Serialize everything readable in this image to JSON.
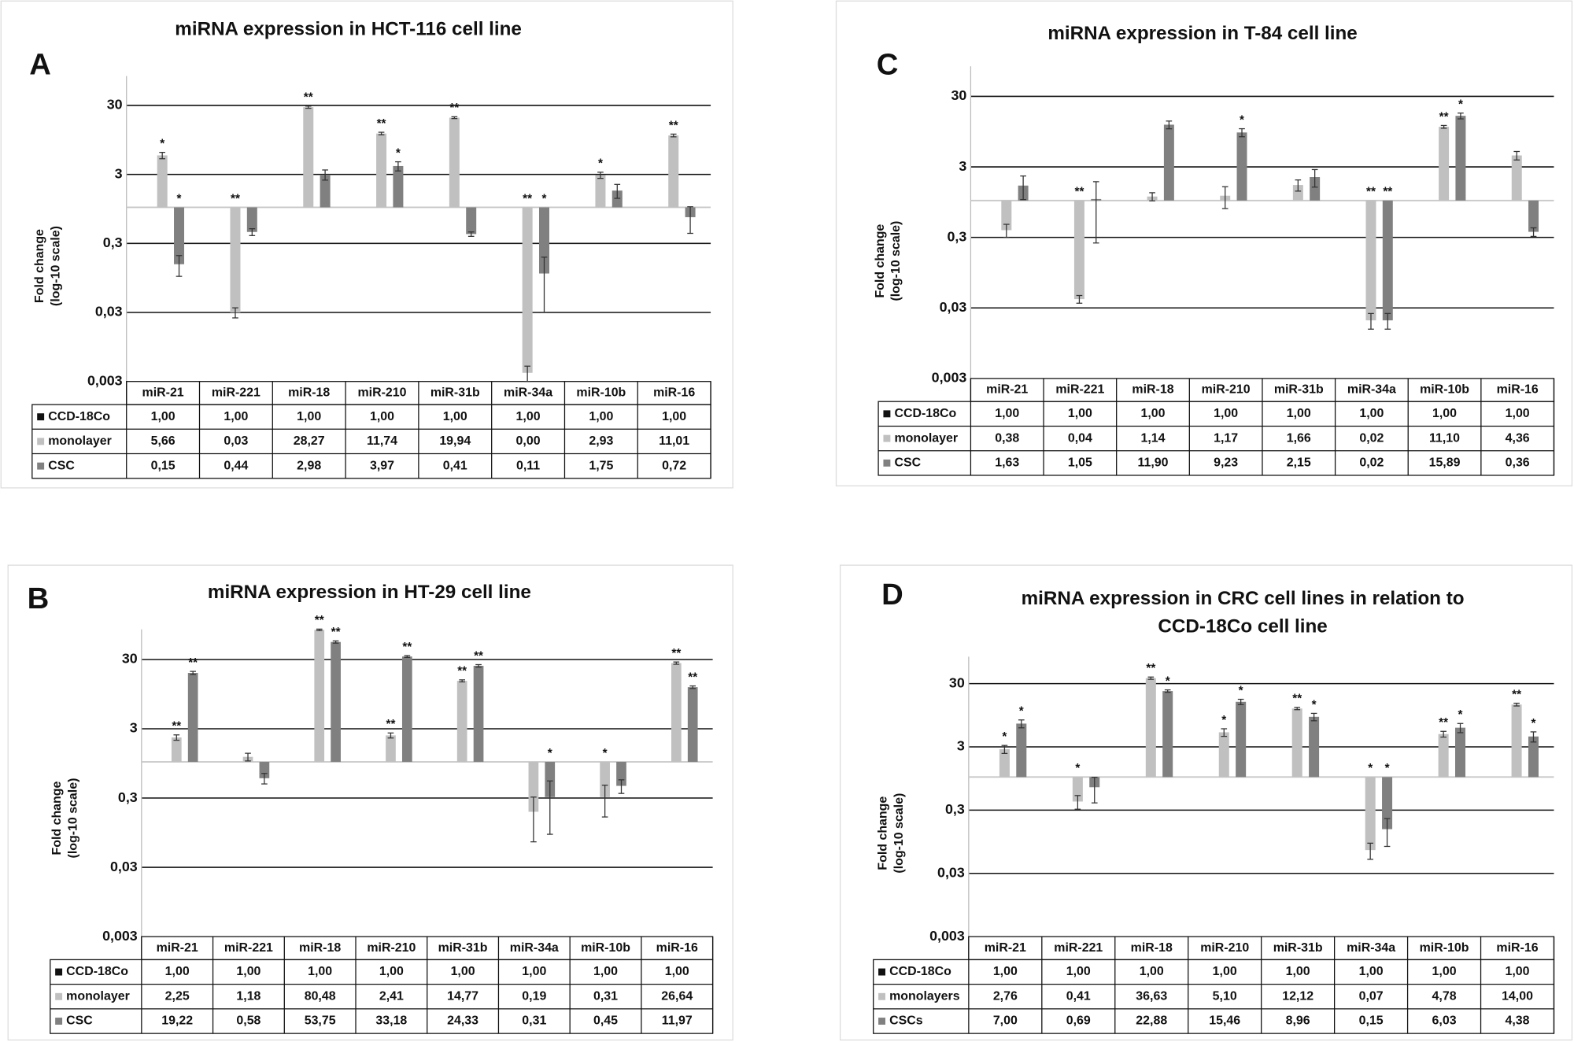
{
  "chart_data": [
    {
      "type": "bar",
      "panel": "A",
      "title": "miRNA expression in HCT-116 cell line",
      "ylabel": [
        "Fold change",
        "(log-10 scale)"
      ],
      "log_scale": true,
      "grid": true,
      "ylim": [
        0.003,
        80
      ],
      "yticks": [
        {
          "value": 0.003,
          "label": "0,003"
        },
        {
          "value": 0.03,
          "label": "0,03"
        },
        {
          "value": 0.3,
          "label": "0,3"
        },
        3,
        30
      ],
      "categories": [
        "miR-21",
        "miR-221",
        "miR-18",
        "miR-210",
        "miR-31b",
        "miR-34a",
        "miR-10b",
        "miR-16"
      ],
      "series": [
        {
          "name": "CCD-18Co",
          "color": "#111111",
          "values": [
            1,
            1,
            1,
            1,
            1,
            1,
            1,
            1
          ],
          "value_labels": [
            "1,00",
            "1,00",
            "1,00",
            "1,00",
            "1,00",
            "1,00",
            "1,00",
            "1,00"
          ]
        },
        {
          "name": "monolayer",
          "color": "#c0c0c0",
          "values": [
            5.66,
            0.03,
            28.27,
            11.74,
            19.94,
            0.004,
            2.93,
            11.01
          ],
          "value_labels": [
            "5,66",
            "0,03",
            "28,27",
            "11,74",
            "19,94",
            "0,00",
            "2,93",
            "11,01"
          ],
          "errors": [
            0.6,
            0.005,
            1,
            0.5,
            0.6,
            0.001,
            0.3,
            0.5
          ],
          "annotations": [
            "*",
            "**",
            "**",
            "**",
            "**",
            "**",
            "*",
            "**"
          ]
        },
        {
          "name": "CSC",
          "color": "#808080",
          "values": [
            0.15,
            0.44,
            2.98,
            3.97,
            0.41,
            0.11,
            1.75,
            0.72
          ],
          "value_labels": [
            "0,15",
            "0,44",
            "2,98",
            "3,97",
            "0,41",
            "0,11",
            "1,75",
            "0,72"
          ],
          "errors": [
            0.05,
            0.05,
            0.5,
            0.6,
            0.03,
            0.08,
            0.4,
            0.3
          ],
          "annotations": [
            "*",
            null,
            null,
            "*",
            null,
            "*",
            null,
            null
          ]
        }
      ]
    },
    {
      "type": "bar",
      "panel": "B",
      "title": "miRNA expression in HT-29 cell line",
      "ylabel": [
        "Fold change",
        "(log-10 scale)"
      ],
      "log_scale": true,
      "grid": true,
      "ylim": [
        0.003,
        82
      ],
      "yticks": [
        {
          "value": 0.003,
          "label": "0,003"
        },
        {
          "value": 0.03,
          "label": "0,03"
        },
        {
          "value": 0.3,
          "label": "0,3"
        },
        3,
        30
      ],
      "categories": [
        "miR-21",
        "miR-221",
        "miR-18",
        "miR-210",
        "miR-31b",
        "miR-34a",
        "miR-10b",
        "miR-16"
      ],
      "series": [
        {
          "name": "CCD-18Co",
          "color": "#111111",
          "values": [
            1,
            1,
            1,
            1,
            1,
            1,
            1,
            1
          ],
          "value_labels": [
            "1,00",
            "1,00",
            "1,00",
            "1,00",
            "1,00",
            "1,00",
            "1,00",
            "1,00"
          ]
        },
        {
          "name": "monolayer",
          "color": "#c0c0c0",
          "values": [
            2.25,
            1.18,
            80.48,
            2.41,
            14.77,
            0.19,
            0.31,
            26.64
          ],
          "value_labels": [
            "2,25",
            "1,18",
            "80,48",
            "2,41",
            "14,77",
            "0,19",
            "0,31",
            "26,64"
          ],
          "errors": [
            0.2,
            0.15,
            2,
            0.2,
            0.5,
            0.12,
            0.15,
            1
          ],
          "annotations": [
            "**",
            null,
            "**",
            "**",
            "**",
            null,
            "*",
            "**"
          ]
        },
        {
          "name": "CSC",
          "color": "#808080",
          "values": [
            19.22,
            0.58,
            53.75,
            33.18,
            24.33,
            0.31,
            0.45,
            11.97
          ],
          "value_labels": [
            "19,22",
            "0,58",
            "53,75",
            "33,18",
            "24,33",
            "0,31",
            "0,45",
            "11,97"
          ],
          "errors": [
            1,
            0.1,
            2,
            1,
            1,
            0.22,
            0.1,
            0.5
          ],
          "annotations": [
            "**",
            null,
            "**",
            "**",
            "**",
            "*",
            null,
            "**"
          ]
        }
      ]
    },
    {
      "type": "bar",
      "panel": "C",
      "title": "miRNA expression in T-84 cell line",
      "ylabel": [
        "Fold change",
        "(log-10 scale)"
      ],
      "log_scale": true,
      "grid": true,
      "ylim": [
        0.003,
        80
      ],
      "yticks": [
        {
          "value": 0.003,
          "label": "0,003"
        },
        {
          "value": 0.03,
          "label": "0,03"
        },
        {
          "value": 0.3,
          "label": "0,3"
        },
        3,
        30
      ],
      "categories": [
        "miR-21",
        "miR-221",
        "miR-18",
        "miR-210",
        "miR-31b",
        "miR-34a",
        "miR-10b",
        "miR-16"
      ],
      "series": [
        {
          "name": "CCD-18Co",
          "color": "#111111",
          "values": [
            1,
            1,
            1,
            1,
            1,
            1,
            1,
            1
          ],
          "value_labels": [
            "1,00",
            "1,00",
            "1,00",
            "1,00",
            "1,00",
            "1,00",
            "1,00",
            "1,00"
          ]
        },
        {
          "name": "monolayer",
          "color": "#c0c0c0",
          "values": [
            0.38,
            0.04,
            1.14,
            1.17,
            1.66,
            0.02,
            11.1,
            4.36
          ],
          "value_labels": [
            "0,38",
            "0,04",
            "1,14",
            "1,17",
            "1,66",
            "0,02",
            "11,10",
            "4,36"
          ],
          "errors": [
            0.08,
            0.005,
            0.15,
            0.4,
            0.3,
            0.005,
            0.5,
            0.6
          ],
          "annotations": [
            null,
            "**",
            null,
            null,
            null,
            "**",
            "**",
            null
          ]
        },
        {
          "name": "CSC",
          "color": "#808080",
          "values": [
            1.63,
            1.05,
            11.9,
            9.23,
            2.15,
            0.02,
            15.89,
            0.36
          ],
          "value_labels": [
            "1,63",
            "1,05",
            "11,90",
            "9,23",
            "2,15",
            "0,02",
            "15,89",
            "0,36"
          ],
          "errors": [
            0.6,
            0.8,
            1.5,
            1.2,
            0.6,
            0.005,
            1.5,
            0.05
          ],
          "annotations": [
            null,
            null,
            null,
            "*",
            null,
            "**",
            "*",
            null
          ]
        }
      ]
    },
    {
      "type": "bar",
      "panel": "D",
      "title": [
        "miRNA expression in CRC cell lines in relation to",
        "CCD-18Co cell line"
      ],
      "ylabel": [
        "Fold change",
        "(log-10 scale)"
      ],
      "log_scale": true,
      "grid": true,
      "ylim": [
        0.003,
        80
      ],
      "yticks": [
        {
          "value": 0.003,
          "label": "0,003"
        },
        {
          "value": 0.03,
          "label": "0,03"
        },
        {
          "value": 0.3,
          "label": "0,3"
        },
        3,
        30
      ],
      "categories": [
        "miR-21",
        "miR-221",
        "miR-18",
        "miR-210",
        "miR-31b",
        "miR-34a",
        "miR-10b",
        "miR-16"
      ],
      "series": [
        {
          "name": "CCD-18Co",
          "color": "#111111",
          "values": [
            1,
            1,
            1,
            1,
            1,
            1,
            1,
            1
          ],
          "value_labels": [
            "1,00",
            "1,00",
            "1,00",
            "1,00",
            "1,00",
            "1,00",
            "1,00",
            "1,00"
          ]
        },
        {
          "name": "monolayers",
          "color": "#c0c0c0",
          "values": [
            2.76,
            0.41,
            36.63,
            5.1,
            12.12,
            0.07,
            4.78,
            14.0
          ],
          "value_labels": [
            "2,76",
            "0,41",
            "36,63",
            "5,10",
            "12,12",
            "0,07",
            "4,78",
            "14,00"
          ],
          "errors": [
            0.4,
            0.1,
            1.5,
            0.7,
            0.5,
            0.02,
            0.5,
            0.7
          ],
          "annotations": [
            "*",
            "*",
            "**",
            "*",
            "**",
            "*",
            "**",
            "**"
          ]
        },
        {
          "name": "CSCs",
          "color": "#808080",
          "values": [
            7.0,
            0.69,
            22.88,
            15.46,
            8.96,
            0.15,
            6.03,
            4.38
          ],
          "value_labels": [
            "7,00",
            "0,69",
            "22,88",
            "15,46",
            "8,96",
            "0,15",
            "6,03",
            "4,38"
          ],
          "errors": [
            1,
            0.3,
            1,
            1.5,
            1.2,
            0.07,
            1,
            0.8
          ],
          "annotations": [
            "*",
            null,
            "*",
            "*",
            "*",
            "*",
            "*",
            "*"
          ]
        }
      ]
    }
  ]
}
